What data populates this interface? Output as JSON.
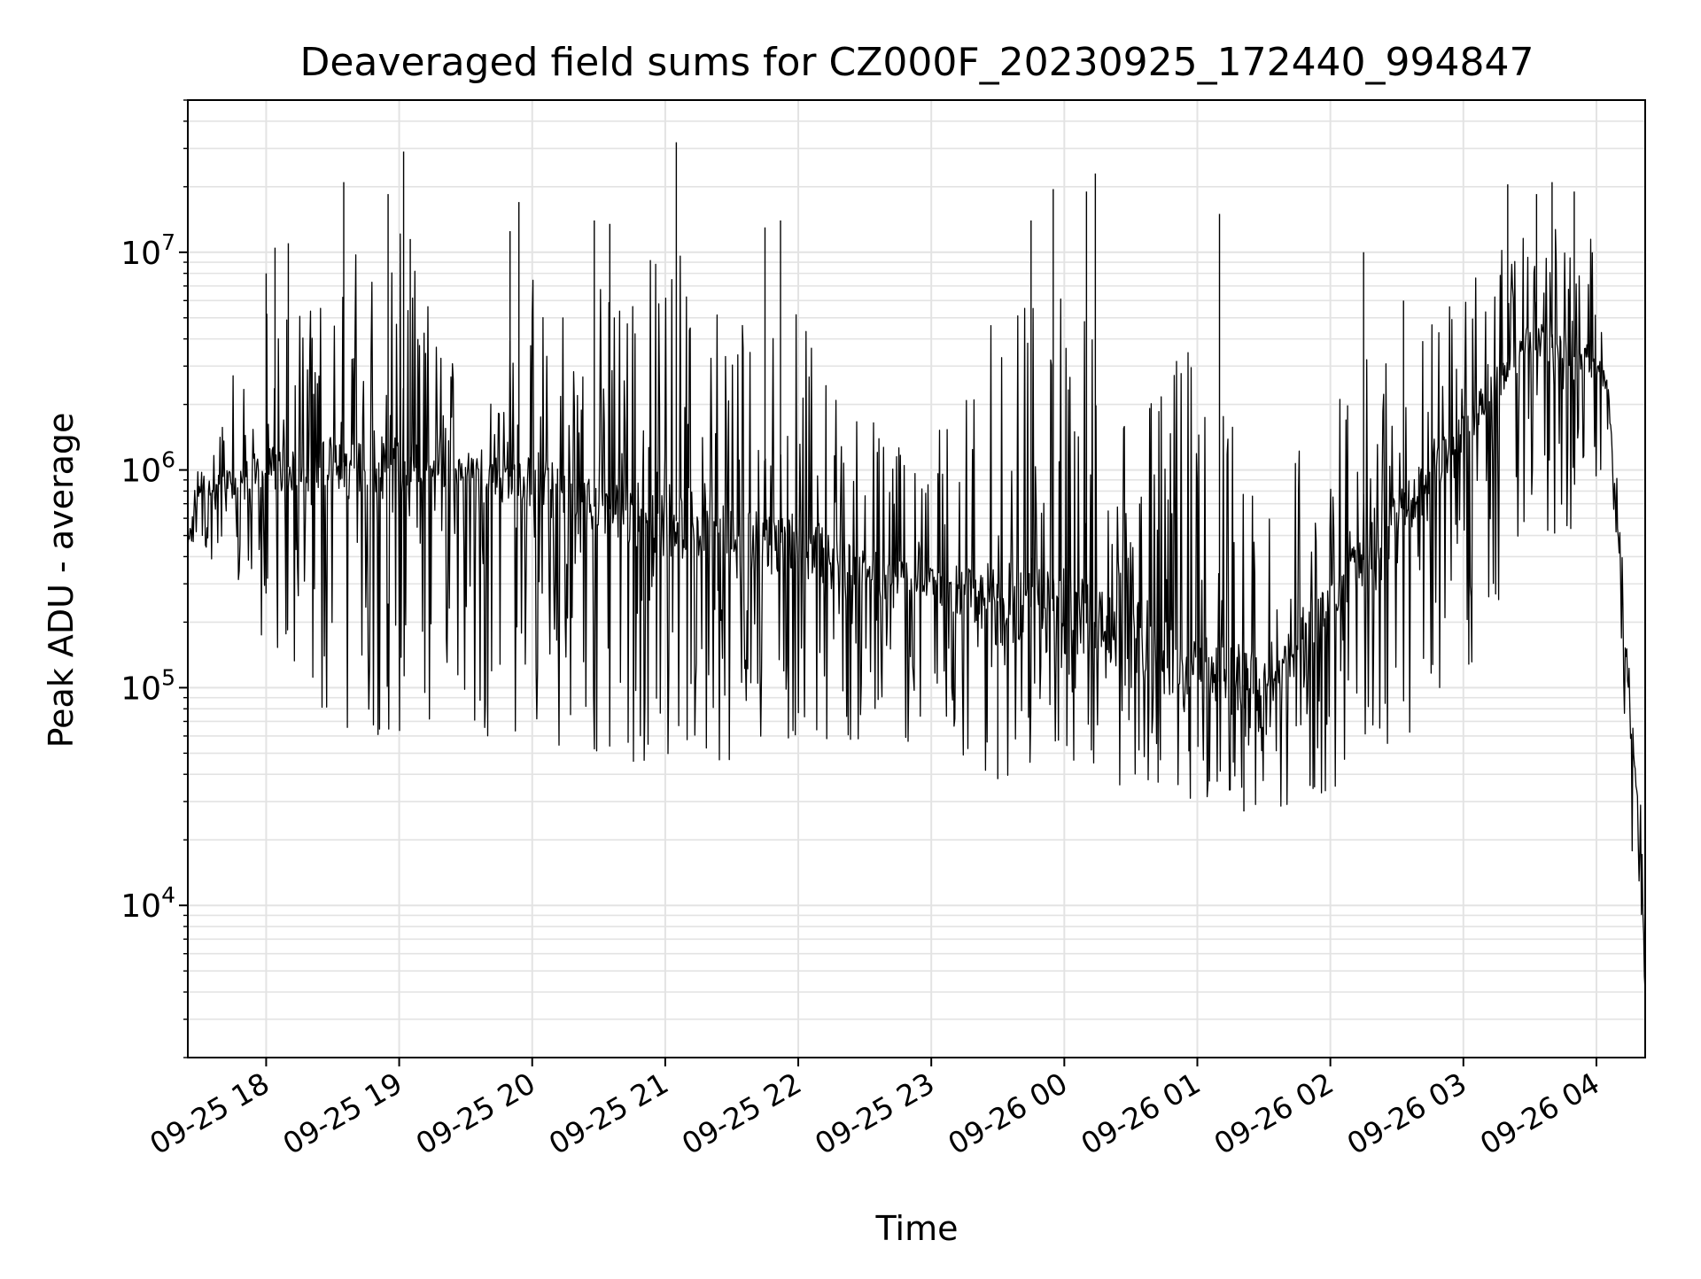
{
  "chart_data": {
    "type": "line",
    "title": "Deaveraged field sums for CZ000F_20230925_172440_994847",
    "xlabel": "Time",
    "ylabel": "Peak ADU - average",
    "yscale": "log",
    "grid": true,
    "legend": "none",
    "line_color": "#000000",
    "xlim": [
      "2023-09-25 17:24:40",
      "2023-09-26 04:22:00"
    ],
    "ylim": [
      2000,
      50000000
    ],
    "xticks": [
      {
        "t": "2023-09-25 18:00",
        "label": "09-25 18"
      },
      {
        "t": "2023-09-25 19:00",
        "label": "09-25 19"
      },
      {
        "t": "2023-09-25 20:00",
        "label": "09-25 20"
      },
      {
        "t": "2023-09-25 21:00",
        "label": "09-25 21"
      },
      {
        "t": "2023-09-25 22:00",
        "label": "09-25 22"
      },
      {
        "t": "2023-09-25 23:00",
        "label": "09-25 23"
      },
      {
        "t": "2023-09-26 00:00",
        "label": "09-26 00"
      },
      {
        "t": "2023-09-26 01:00",
        "label": "09-26 01"
      },
      {
        "t": "2023-09-26 02:00",
        "label": "09-26 02"
      },
      {
        "t": "2023-09-26 03:00",
        "label": "09-26 03"
      },
      {
        "t": "2023-09-26 04:00",
        "label": "09-26 04"
      }
    ],
    "yticks": [
      {
        "value": 10000,
        "base": "10",
        "exp": "4"
      },
      {
        "value": 100000,
        "base": "10",
        "exp": "5"
      },
      {
        "value": 1000000,
        "base": "10",
        "exp": "6"
      },
      {
        "value": 10000000,
        "base": "10",
        "exp": "7"
      }
    ],
    "series": [
      {
        "envelope_points": [
          {
            "t": "2023-09-25 17:24:40",
            "low": 420000,
            "high": 560000,
            "typical": 480000
          },
          {
            "t": "2023-09-25 17:30",
            "low": 450000,
            "high": 1300000,
            "typical": 800000
          },
          {
            "t": "2023-09-25 17:45",
            "low": 300000,
            "high": 3900000,
            "typical": 900000
          },
          {
            "t": "2023-09-25 18:00",
            "low": 150000,
            "high": 10500000,
            "typical": 1000000
          },
          {
            "t": "2023-09-25 18:30",
            "low": 60000,
            "high": 20000000,
            "typical": 1100000
          },
          {
            "t": "2023-09-25 19:00",
            "low": 60000,
            "high": 29000000,
            "typical": 1000000
          },
          {
            "t": "2023-09-25 19:30",
            "low": 60000,
            "high": 4000000,
            "typical": 1000000
          },
          {
            "t": "2023-09-25 20:00",
            "low": 60000,
            "high": 17000000,
            "typical": 900000
          },
          {
            "t": "2023-09-25 20:20",
            "low": 40000,
            "high": 14000000,
            "typical": 700000
          },
          {
            "t": "2023-09-25 21:00",
            "low": 48000,
            "high": 32000000,
            "typical": 600000
          },
          {
            "t": "2023-09-25 21:30",
            "low": 44000,
            "high": 13500000,
            "typical": 500000
          },
          {
            "t": "2023-09-25 22:00",
            "low": 60000,
            "high": 12000000,
            "typical": 450000
          },
          {
            "t": "2023-09-25 22:30",
            "low": 55000,
            "high": 3300000,
            "typical": 350000
          },
          {
            "t": "2023-09-25 23:00",
            "low": 55000,
            "high": 2200000,
            "typical": 300000
          },
          {
            "t": "2023-09-25 23:30",
            "low": 38000,
            "high": 20000000,
            "typical": 250000
          },
          {
            "t": "2023-09-26 00:00",
            "low": 45000,
            "high": 23000000,
            "typical": 220000
          },
          {
            "t": "2023-09-26 00:30",
            "low": 34000,
            "high": 5000000,
            "typical": 160000
          },
          {
            "t": "2023-09-26 01:00",
            "low": 30000,
            "high": 15000000,
            "typical": 110000
          },
          {
            "t": "2023-09-26 01:30",
            "low": 27000,
            "high": 1800000,
            "typical": 100000
          },
          {
            "t": "2023-09-26 02:00",
            "low": 33000,
            "high": 5000000,
            "typical": 250000
          },
          {
            "t": "2023-09-26 02:30",
            "low": 55000,
            "high": 8000000,
            "typical": 600000
          },
          {
            "t": "2023-09-26 03:00",
            "low": 100000,
            "high": 12000000,
            "typical": 1500000
          },
          {
            "t": "2023-09-26 03:30",
            "low": 450000,
            "high": 20000000,
            "typical": 4000000
          },
          {
            "t": "2023-09-26 04:00",
            "low": 550000,
            "high": 19000000,
            "typical": 3000000
          },
          {
            "t": "2023-09-26 04:05",
            "low": 1400000,
            "high": 5500000,
            "typical": 2500000
          },
          {
            "t": "2023-09-26 04:10",
            "low": 300000,
            "high": 800000,
            "typical": 450000
          },
          {
            "t": "2023-09-26 04:15",
            "low": 21000,
            "high": 160000,
            "typical": 80000
          },
          {
            "t": "2023-09-26 04:20",
            "low": 10000,
            "high": 45000,
            "typical": 20000
          },
          {
            "t": "2023-09-26 04:22:00",
            "low": 3000,
            "high": 10000,
            "typical": 4000
          }
        ],
        "spikes": [
          {
            "t": "2023-09-25 18:00",
            "value": 8000000
          },
          {
            "t": "2023-09-25 18:04",
            "value": 10500000
          },
          {
            "t": "2023-09-25 18:10",
            "value": 11000000
          },
          {
            "t": "2023-09-25 18:35",
            "value": 21000000
          },
          {
            "t": "2023-09-25 18:55",
            "value": 18500000
          },
          {
            "t": "2023-09-25 19:02",
            "value": 29000000
          },
          {
            "t": "2023-09-25 19:05",
            "value": 11500000
          },
          {
            "t": "2023-09-25 19:50",
            "value": 12500000
          },
          {
            "t": "2023-09-25 19:54",
            "value": 17000000
          },
          {
            "t": "2023-09-25 20:28",
            "value": 14000000
          },
          {
            "t": "2023-09-25 20:35",
            "value": 13500000
          },
          {
            "t": "2023-09-25 21:05",
            "value": 32000000
          },
          {
            "t": "2023-09-25 21:45",
            "value": 13000000
          },
          {
            "t": "2023-09-25 21:52",
            "value": 14000000
          },
          {
            "t": "2023-09-25 23:45",
            "value": 14000000
          },
          {
            "t": "2023-09-25 23:55",
            "value": 19500000
          },
          {
            "t": "2023-09-26 00:14",
            "value": 23000000
          },
          {
            "t": "2023-09-26 00:10",
            "value": 19000000
          },
          {
            "t": "2023-09-26 01:10",
            "value": 15000000
          },
          {
            "t": "2023-09-26 02:15",
            "value": 10000000
          },
          {
            "t": "2023-09-26 02:33",
            "value": 6000000
          },
          {
            "t": "2023-09-26 03:20",
            "value": 20500000
          },
          {
            "t": "2023-09-26 03:40",
            "value": 21000000
          },
          {
            "t": "2023-09-26 03:33",
            "value": 18500000
          },
          {
            "t": "2023-09-26 03:50",
            "value": 19000000
          },
          {
            "t": "2023-09-25 23:30",
            "value": 38000
          },
          {
            "t": "2023-09-26 01:21",
            "value": 27000
          },
          {
            "t": "2023-09-26 04:22",
            "value": 3200
          }
        ]
      }
    ]
  }
}
